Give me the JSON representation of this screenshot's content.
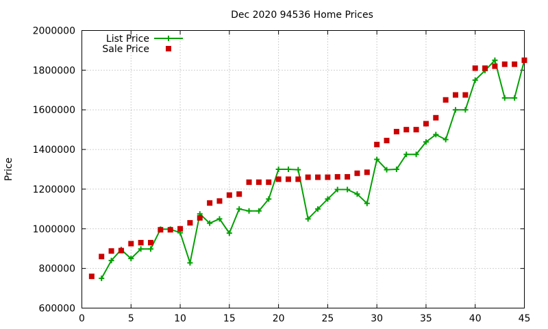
{
  "chart_data": {
    "type": "line",
    "title": "Dec 2020 94536 Home Prices",
    "xlabel": "",
    "ylabel": "Price",
    "xlim": [
      0,
      45
    ],
    "ylim": [
      600000,
      2000000
    ],
    "x_ticks": [
      0,
      5,
      10,
      15,
      20,
      25,
      30,
      35,
      40,
      45
    ],
    "y_ticks": [
      600000,
      800000,
      1000000,
      1200000,
      1400000,
      1600000,
      1800000,
      2000000
    ],
    "grid": true,
    "legend_position": "top-left",
    "x": [
      1,
      2,
      3,
      4,
      5,
      6,
      7,
      8,
      9,
      10,
      11,
      12,
      13,
      14,
      15,
      16,
      17,
      18,
      19,
      20,
      21,
      22,
      23,
      24,
      25,
      26,
      27,
      28,
      29,
      30,
      31,
      32,
      33,
      34,
      35,
      36,
      37,
      38,
      39,
      40,
      41,
      42,
      43,
      44,
      45
    ],
    "series": [
      {
        "name": "List Price",
        "style": "line-with-plus-markers",
        "color": "#00a000",
        "values": [
          null,
          750000,
          840000,
          895000,
          850000,
          898000,
          898000,
          998000,
          998000,
          980000,
          828000,
          1075000,
          1028000,
          1050000,
          978000,
          1100000,
          1090000,
          1090000,
          1150000,
          1300000,
          1300000,
          1298000,
          1050000,
          1100000,
          1150000,
          1198000,
          1198000,
          1175000,
          1128000,
          1350000,
          1298000,
          1300000,
          1375000,
          1375000,
          1438000,
          1475000,
          1450000,
          1600000,
          1600000,
          1750000,
          1798000,
          1850000,
          1660000,
          1660000,
          1850000
        ]
      },
      {
        "name": "Sale Price",
        "style": "square-markers",
        "color": "#cc0000",
        "values": [
          760000,
          860000,
          888000,
          890000,
          925000,
          930000,
          930000,
          995000,
          995000,
          1000000,
          1030000,
          1055000,
          1130000,
          1140000,
          1170000,
          1175000,
          1235000,
          1235000,
          1235000,
          1250000,
          1250000,
          1250000,
          1260000,
          1260000,
          1260000,
          1262000,
          1262000,
          1280000,
          1285000,
          1425000,
          1445000,
          1490000,
          1500000,
          1500000,
          1530000,
          1560000,
          1650000,
          1675000,
          1675000,
          1810000,
          1810000,
          1820000,
          1830000,
          1830000,
          1850000
        ]
      }
    ]
  }
}
